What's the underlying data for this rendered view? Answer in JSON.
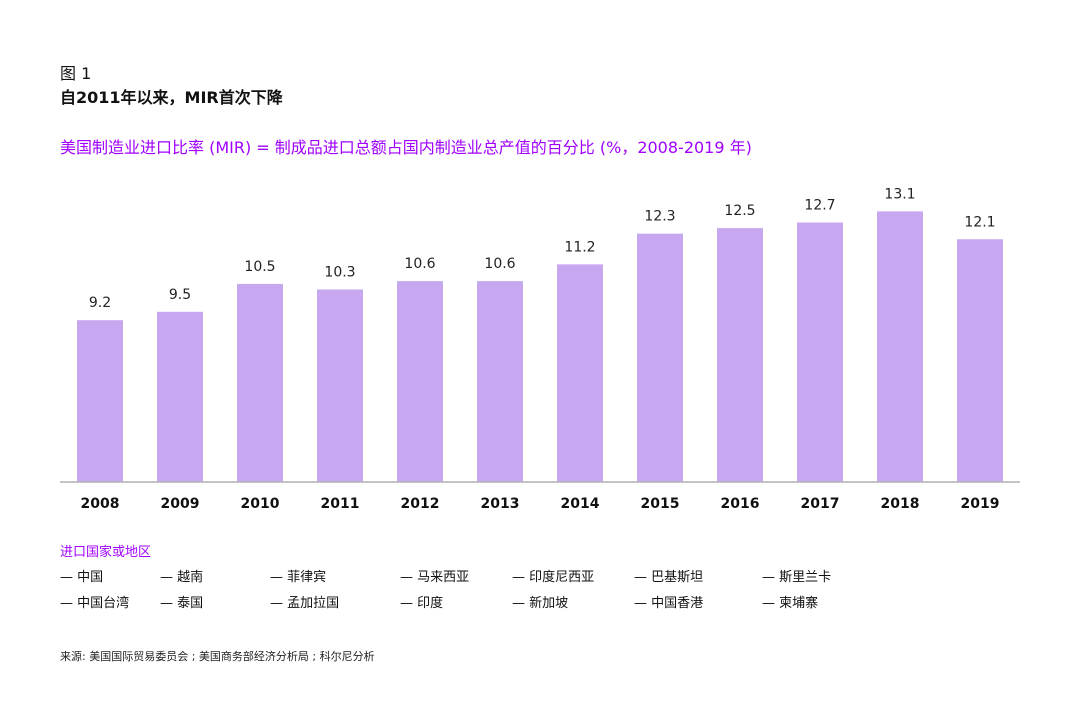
{
  "figure": {
    "label": "图 1",
    "title": "自2011年以来，MIR首次下降",
    "subtitle": "美国制造业进口比率 (MIR) = 制成品进口总额占国内制造业总产值的百分比 (%，2008-2019 年)"
  },
  "chart_data": {
    "type": "bar",
    "categories": [
      "2008",
      "2009",
      "2010",
      "2011",
      "2012",
      "2013",
      "2014",
      "2015",
      "2016",
      "2017",
      "2018",
      "2019"
    ],
    "values": [
      9.2,
      9.5,
      10.5,
      10.3,
      10.6,
      10.6,
      11.2,
      12.3,
      12.5,
      12.7,
      13.1,
      12.1
    ],
    "value_labels": [
      "9.2",
      "9.5",
      "10.5",
      "10.3",
      "10.6",
      "10.6",
      "11.2",
      "12.3",
      "12.5",
      "12.7",
      "13.1",
      "12.1"
    ],
    "ylim": [
      3.4,
      13.4
    ],
    "bar_color": "#c6a7f0",
    "baseline_color": "#b0b0b0",
    "grid": false,
    "legend": "none"
  },
  "legend": {
    "title": "进口国家或地区",
    "items": [
      "— 中国",
      "— 越南",
      "— 菲律宾",
      "— 马来西亚",
      "— 印度尼西亚",
      "— 巴基斯坦",
      "— 斯里兰卡",
      "— 中国台湾",
      "— 泰国",
      "— 孟加拉国",
      "— 印度",
      "— 新加坡",
      "— 中国香港",
      "— 柬埔寨"
    ]
  },
  "source": "来源: 美国国际贸易委员会 ; 美国商务部经济分析局 ; 科尔尼分析",
  "colors": {
    "accent": "#a100ff",
    "text": "#111111"
  }
}
